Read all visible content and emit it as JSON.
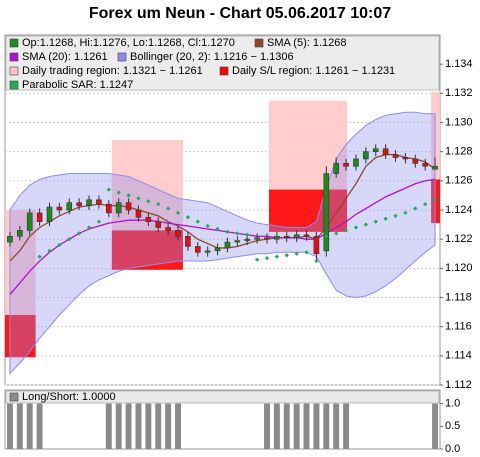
{
  "chart_data": [
    {
      "type": "candlestick",
      "title": "Forex um Neun - Chart 05.06.2017 10:07",
      "name": "Op:1.1268, Hi:1.1276, Lo:1.1268, Cl:1.1270",
      "up_color": "#1e8a1e",
      "down_color": "#dd1111",
      "xlim": [
        0,
        44
      ],
      "ylim": [
        1.112,
        1.136
      ],
      "yticks": [
        1.112,
        1.114,
        1.116,
        1.118,
        {
          "value": 1.12,
          "label": "1.120"
        },
        1.122,
        1.124,
        1.126,
        1.128,
        {
          "value": 1.13,
          "label": "1.130"
        },
        1.132,
        1.134
      ],
      "grid": true,
      "open": [
        1.1218,
        1.1222,
        1.1226,
        1.1238,
        1.1232,
        1.1242,
        1.124,
        1.1245,
        1.1243,
        1.1247,
        1.1244,
        1.1238,
        1.1245,
        1.124,
        1.1235,
        1.1232,
        1.1228,
        1.1226,
        1.1222,
        1.1215,
        1.1211,
        1.1212,
        1.1214,
        1.1218,
        1.1219,
        1.122,
        1.1221,
        1.122,
        1.1222,
        1.1221,
        1.1223,
        1.1222,
        1.1212,
        1.1265,
        1.1272,
        1.127,
        1.1275,
        1.128,
        1.1282,
        1.1278,
        1.1276,
        1.1275,
        1.1272,
        1.1268
      ],
      "high": [
        1.1225,
        1.1229,
        1.1241,
        1.1241,
        1.1245,
        1.1245,
        1.1248,
        1.1248,
        1.125,
        1.125,
        1.1247,
        1.1248,
        1.1248,
        1.1243,
        1.1238,
        1.1235,
        1.1231,
        1.1229,
        1.1225,
        1.1218,
        1.1215,
        1.1217,
        1.1221,
        1.1222,
        1.1223,
        1.1224,
        1.1224,
        1.1225,
        1.1225,
        1.1226,
        1.1226,
        1.1225,
        1.127,
        1.1276,
        1.1275,
        1.1278,
        1.1283,
        1.1285,
        1.1285,
        1.1281,
        1.1279,
        1.1278,
        1.1275,
        1.1276
      ],
      "low": [
        1.1215,
        1.1219,
        1.1223,
        1.1229,
        1.1229,
        1.1237,
        1.1237,
        1.124,
        1.124,
        1.1241,
        1.1235,
        1.1235,
        1.1237,
        1.1232,
        1.1229,
        1.1225,
        1.1223,
        1.1219,
        1.1212,
        1.1208,
        1.1208,
        1.1209,
        1.1211,
        1.1215,
        1.1216,
        1.1217,
        1.1217,
        1.1217,
        1.1218,
        1.1218,
        1.1219,
        1.1206,
        1.1208,
        1.1262,
        1.1267,
        1.1267,
        1.1272,
        1.1277,
        1.1275,
        1.1273,
        1.1272,
        1.1269,
        1.1267,
        1.1268
      ],
      "close": [
        1.1222,
        1.1226,
        1.1238,
        1.1232,
        1.1242,
        1.124,
        1.1245,
        1.1243,
        1.1247,
        1.1244,
        1.1238,
        1.1245,
        1.124,
        1.1235,
        1.1232,
        1.1228,
        1.1226,
        1.1222,
        1.1215,
        1.1211,
        1.1212,
        1.1214,
        1.1218,
        1.1219,
        1.122,
        1.1221,
        1.122,
        1.1222,
        1.1221,
        1.1223,
        1.1222,
        1.121,
        1.1265,
        1.1272,
        1.127,
        1.1275,
        1.128,
        1.1282,
        1.1278,
        1.1276,
        1.1275,
        1.1272,
        1.127,
        1.127
      ],
      "series": [
        {
          "name": "SMA (5): 1.1268",
          "color": "#8b4a2b",
          "style": "line",
          "values": [
            1.1205,
            1.1212,
            1.1222,
            1.1228,
            1.1232,
            1.1236,
            1.1239,
            1.1242,
            1.1243,
            1.1244,
            1.1243,
            1.1243,
            1.1242,
            1.124,
            1.1238,
            1.1236,
            1.1232,
            1.1229,
            1.1225,
            1.122,
            1.1217,
            1.1214,
            1.1214,
            1.1215,
            1.1217,
            1.1219,
            1.122,
            1.1221,
            1.1221,
            1.1221,
            1.1222,
            1.122,
            1.1228,
            1.1238,
            1.1248,
            1.1258,
            1.127,
            1.1276,
            1.1278,
            1.1278,
            1.1276,
            1.1275,
            1.1273,
            1.1268
          ]
        },
        {
          "name": "SMA (20): 1.1261",
          "color": "#b010d0",
          "style": "line",
          "values": [
            1.1182,
            1.119,
            1.1198,
            1.1205,
            1.1211,
            1.1216,
            1.122,
            1.1224,
            1.1227,
            1.1229,
            1.1231,
            1.1232,
            1.1233,
            1.1233,
            1.1233,
            1.1232,
            1.1231,
            1.123,
            1.1229,
            1.1228,
            1.1227,
            1.1226,
            1.1225,
            1.1224,
            1.1223,
            1.1222,
            1.1222,
            1.1221,
            1.1221,
            1.1221,
            1.122,
            1.122,
            1.1224,
            1.1228,
            1.1232,
            1.1237,
            1.1241,
            1.1245,
            1.1249,
            1.1252,
            1.1255,
            1.1258,
            1.126,
            1.1261
          ]
        },
        {
          "name": "Parabolic SAR: 1.1247",
          "color": "#22aa55",
          "style": "dots",
          "values": [
            null,
            null,
            null,
            1.1208,
            1.1212,
            1.1216,
            1.122,
            1.1224,
            1.1228,
            1.1232,
            1.1254,
            1.1252,
            1.125,
            1.1248,
            1.1246,
            1.1244,
            1.1241,
            1.1238,
            1.1235,
            1.1232,
            1.1229,
            1.1227,
            1.1225,
            1.1224,
            1.1223,
            1.1206,
            1.1207,
            1.1208,
            1.1209,
            1.121,
            1.1211,
            1.1205,
            1.1222,
            1.1224,
            1.1226,
            1.1228,
            1.123,
            1.1232,
            1.1234,
            1.1236,
            1.1238,
            1.1241,
            1.1244,
            1.1247
          ]
        }
      ],
      "bollinger": {
        "name": "Bollinger (20, 2): 1.1216 − 1.1306",
        "color": "#8c8cf0",
        "upper": [
          1.124,
          1.125,
          1.1257,
          1.1261,
          1.1263,
          1.1264,
          1.1265,
          1.1265,
          1.1265,
          1.1265,
          1.1265,
          1.1264,
          1.1263,
          1.126,
          1.1257,
          1.1254,
          1.1251,
          1.1248,
          1.1247,
          1.1246,
          1.1245,
          1.1242,
          1.1239,
          1.1236,
          1.1233,
          1.1231,
          1.123,
          1.1229,
          1.1228,
          1.1228,
          1.1228,
          1.1232,
          1.1255,
          1.1275,
          1.1285,
          1.1292,
          1.1298,
          1.1302,
          1.1305,
          1.1306,
          1.1307,
          1.1307,
          1.1306,
          1.1306
        ],
        "lower": [
          1.1128,
          1.1135,
          1.1143,
          1.1152,
          1.116,
          1.1168,
          1.1175,
          1.1182,
          1.1188,
          1.1192,
          1.1195,
          1.1198,
          1.12,
          1.1201,
          1.1202,
          1.1203,
          1.1204,
          1.1205,
          1.1205,
          1.1205,
          1.1205,
          1.1206,
          1.1207,
          1.1208,
          1.1209,
          1.121,
          1.121,
          1.1211,
          1.1211,
          1.1211,
          1.1211,
          1.1208,
          1.1196,
          1.1185,
          1.1181,
          1.118,
          1.1181,
          1.1184,
          1.1188,
          1.1193,
          1.1199,
          1.1205,
          1.1211,
          1.1216
        ]
      },
      "regions": [
        {
          "name": "Daily trading region: 1.1321 − 1.1261",
          "color": "#ffc4c4",
          "spans": [
            {
              "start": 0,
              "end": 3.1,
              "top": 1.124,
              "bottom": 1.1168
            },
            {
              "start": 10.8,
              "end": 18,
              "top": 1.1288,
              "bottom": 1.1226
            },
            {
              "start": 26.7,
              "end": 34.6,
              "top": 1.1315,
              "bottom": 1.1254
            },
            {
              "start": 43.1,
              "end": 44,
              "top": 1.1321,
              "bottom": 1.1261
            }
          ]
        },
        {
          "name": "Daily S/L region: 1.1261 − 1.1231",
          "color": "#ff0000",
          "spans": [
            {
              "start": 0,
              "end": 3.1,
              "top": 1.1168,
              "bottom": 1.1139
            },
            {
              "start": 10.8,
              "end": 18,
              "top": 1.1226,
              "bottom": 1.1199
            },
            {
              "start": 26.7,
              "end": 34.6,
              "top": 1.1254,
              "bottom": 1.1225
            },
            {
              "start": 43.1,
              "end": 44,
              "top": 1.1261,
              "bottom": 1.1231
            }
          ]
        }
      ]
    },
    {
      "type": "bar",
      "name": "Long/Short: 1.0000",
      "color": "#8a8a8a",
      "xlim": [
        0,
        44
      ],
      "ylim": [
        0,
        1.3
      ],
      "yticks": [
        {
          "value": 0,
          "label": "0.0"
        },
        0.5,
        {
          "value": 1,
          "label": "1.0"
        }
      ],
      "values": [
        1,
        1,
        1,
        1,
        0,
        0,
        0,
        0,
        0,
        0,
        1,
        1,
        1,
        1,
        1,
        1,
        1,
        1,
        0,
        0,
        0,
        0,
        0,
        0,
        0,
        0,
        1,
        1,
        1,
        1,
        1,
        1,
        1,
        1,
        1,
        0,
        0,
        0,
        0,
        0,
        0,
        0,
        0,
        1
      ]
    }
  ]
}
